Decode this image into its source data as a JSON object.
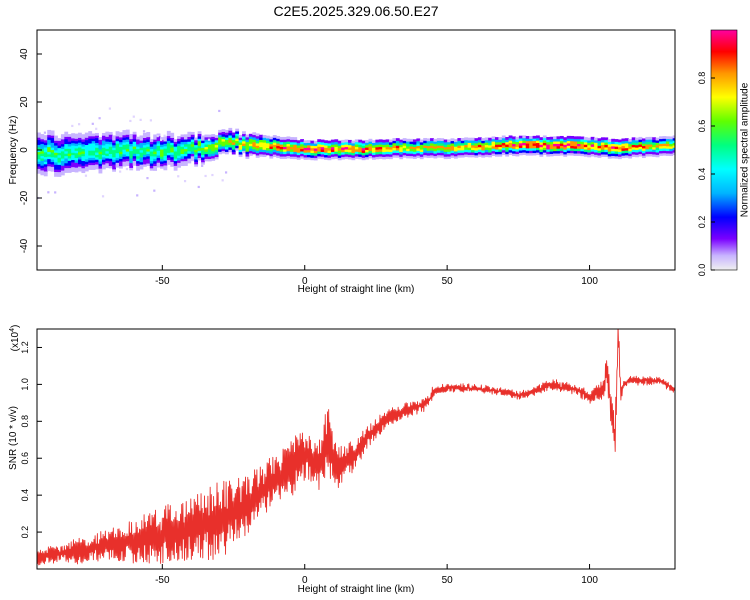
{
  "title": "C2E5.2025.329.06.50.E27",
  "colors": {
    "snr_line": "#e8302b",
    "background": "#ffffff",
    "axis": "#000000",
    "colormap": [
      "#f0f0f0",
      "#c8b4ff",
      "#7a00ff",
      "#0000ff",
      "#00b4ff",
      "#00ffff",
      "#00ff80",
      "#60ff00",
      "#ffff00",
      "#ff9600",
      "#ff0000",
      "#ff00a0"
    ]
  },
  "chart_data": [
    {
      "type": "heatmap",
      "title": "C2E5.2025.329.06.50.E27",
      "xlabel": "Height of straight line (km)",
      "ylabel": "Frequency (Hz)",
      "xlim": [
        -94,
        130
      ],
      "ylim": [
        -50,
        50
      ],
      "xticks": [
        -50,
        0,
        50,
        100
      ],
      "yticks": [
        -40,
        -20,
        0,
        20,
        40
      ],
      "colorbar": {
        "label": "Normalized spectral amplitude",
        "range": [
          0,
          1
        ],
        "ticks": [
          "0.0",
          "0.2",
          "0.4",
          "0.6",
          "0.8"
        ],
        "tick_values": [
          0.0,
          0.2,
          0.4,
          0.6,
          0.8
        ]
      },
      "band_center": {
        "x": [
          -94,
          -80,
          -70,
          -60,
          -50,
          -40,
          -30,
          -25,
          -20,
          -10,
          0,
          10,
          20,
          30,
          40,
          50,
          60,
          70,
          80,
          90,
          100,
          110,
          120,
          130
        ],
        "freq": [
          -2,
          -2,
          -1.5,
          -1,
          -1,
          0,
          1.5,
          2.5,
          2,
          1,
          0,
          0,
          0,
          0.5,
          0.5,
          0.5,
          1,
          1.5,
          1.5,
          1.5,
          1,
          0.5,
          1,
          1.5
        ]
      },
      "band_halfwidth": {
        "x": [
          -94,
          -60,
          -40,
          -30,
          -20,
          0,
          50,
          100,
          130
        ],
        "hz": [
          7,
          6,
          5,
          4,
          3.5,
          3,
          3,
          3,
          3
        ]
      },
      "peak_amplitude": {
        "x": [
          -94,
          -60,
          -40,
          -30,
          -20,
          -10,
          0,
          20,
          40,
          60,
          70,
          80,
          90,
          100,
          110,
          120,
          130
        ],
        "amp": [
          0.55,
          0.55,
          0.6,
          0.72,
          0.78,
          0.85,
          0.9,
          0.88,
          0.75,
          0.8,
          0.85,
          0.95,
          0.95,
          0.85,
          0.9,
          0.8,
          0.7
        ]
      }
    },
    {
      "type": "line",
      "xlabel": "Height of straight line (km)",
      "ylabel": "SNR (10 * v/v)",
      "scale_label": "(x10",
      "scale_exp": "4",
      "scale_close": ")",
      "xlim": [
        -94,
        130
      ],
      "ylim": [
        0,
        1.3
      ],
      "xticks": [
        -50,
        0,
        50,
        100
      ],
      "yticks": [
        0.2,
        0.4,
        0.6,
        0.8,
        1.0,
        1.2
      ],
      "ytick_labels": [
        "0.2",
        "0.4",
        "0.6",
        "0.8",
        "1.0",
        "1.2"
      ],
      "series": [
        {
          "name": "SNR",
          "x": [
            -94,
            -88,
            -80,
            -72,
            -66,
            -60,
            -55,
            -50,
            -45,
            -40,
            -35,
            -30,
            -25,
            -20,
            -15,
            -10,
            -5,
            0,
            2,
            4,
            6,
            8,
            10,
            12,
            14,
            16,
            18,
            20,
            22,
            25,
            28,
            30,
            35,
            40,
            42,
            44,
            45,
            50,
            55,
            60,
            65,
            70,
            75,
            80,
            85,
            88,
            90,
            92,
            95,
            98,
            100,
            102,
            105,
            106,
            108,
            109,
            110,
            111,
            112,
            114,
            116,
            120,
            125,
            130
          ],
          "y": [
            0.06,
            0.08,
            0.1,
            0.12,
            0.14,
            0.15,
            0.17,
            0.18,
            0.2,
            0.22,
            0.24,
            0.26,
            0.3,
            0.35,
            0.42,
            0.48,
            0.55,
            0.62,
            0.6,
            0.55,
            0.6,
            0.7,
            0.6,
            0.55,
            0.58,
            0.6,
            0.62,
            0.66,
            0.72,
            0.76,
            0.8,
            0.82,
            0.86,
            0.88,
            0.9,
            0.92,
            0.96,
            0.98,
            0.98,
            0.98,
            0.97,
            0.96,
            0.94,
            0.96,
            0.99,
            1.0,
            0.98,
            0.99,
            0.97,
            0.95,
            0.93,
            0.95,
            0.98,
            1.1,
            0.8,
            0.7,
            1.28,
            0.95,
            1.0,
            1.02,
            1.02,
            1.02,
            1.02,
            0.97
          ],
          "amp": [
            0.04,
            0.05,
            0.07,
            0.08,
            0.09,
            0.12,
            0.14,
            0.16,
            0.17,
            0.17,
            0.2,
            0.21,
            0.18,
            0.16,
            0.15,
            0.14,
            0.16,
            0.14,
            0.12,
            0.12,
            0.18,
            0.22,
            0.15,
            0.12,
            0.1,
            0.1,
            0.08,
            0.07,
            0.07,
            0.06,
            0.05,
            0.05,
            0.04,
            0.04,
            0.04,
            0.03,
            0.03,
            0.02,
            0.02,
            0.02,
            0.02,
            0.02,
            0.02,
            0.02,
            0.03,
            0.03,
            0.03,
            0.03,
            0.03,
            0.03,
            0.03,
            0.04,
            0.05,
            0.08,
            0.1,
            0.12,
            0.1,
            0.06,
            0.02,
            0.02,
            0.02,
            0.02,
            0.02,
            0.02
          ]
        }
      ]
    }
  ]
}
